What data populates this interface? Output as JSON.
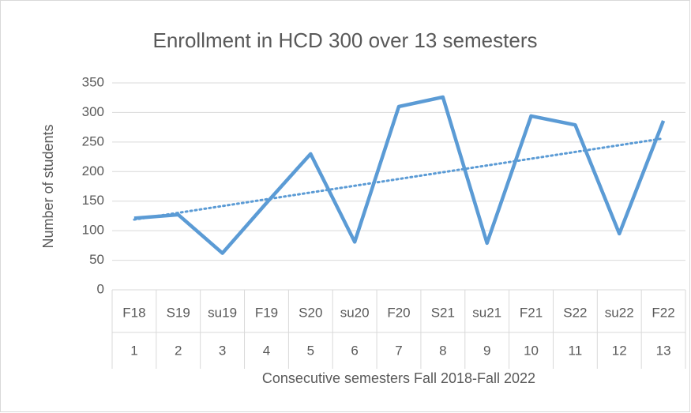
{
  "chart_data": {
    "type": "line",
    "title": "Enrollment in HCD 300 over 13 semesters",
    "y_label": "Number of students",
    "x_label": "Consecutive semesters Fall 2018-Fall 2022",
    "categories": [
      "F18",
      "S19",
      "su19",
      "F19",
      "S20",
      "su20",
      "F20",
      "S21",
      "su21",
      "F21",
      "S22",
      "su22",
      "F22"
    ],
    "category_numbers": [
      "1",
      "2",
      "3",
      "4",
      "5",
      "6",
      "7",
      "8",
      "9",
      "10",
      "11",
      "12",
      "13"
    ],
    "values": [
      121,
      127,
      62,
      147,
      230,
      81,
      310,
      326,
      79,
      294,
      279,
      95,
      286
    ],
    "color": "#5b9bd5",
    "trendline": "linear",
    "ylim": [
      0,
      350
    ],
    "yticks": [
      0,
      50,
      100,
      150,
      200,
      250,
      300,
      350
    ],
    "grid": true
  }
}
